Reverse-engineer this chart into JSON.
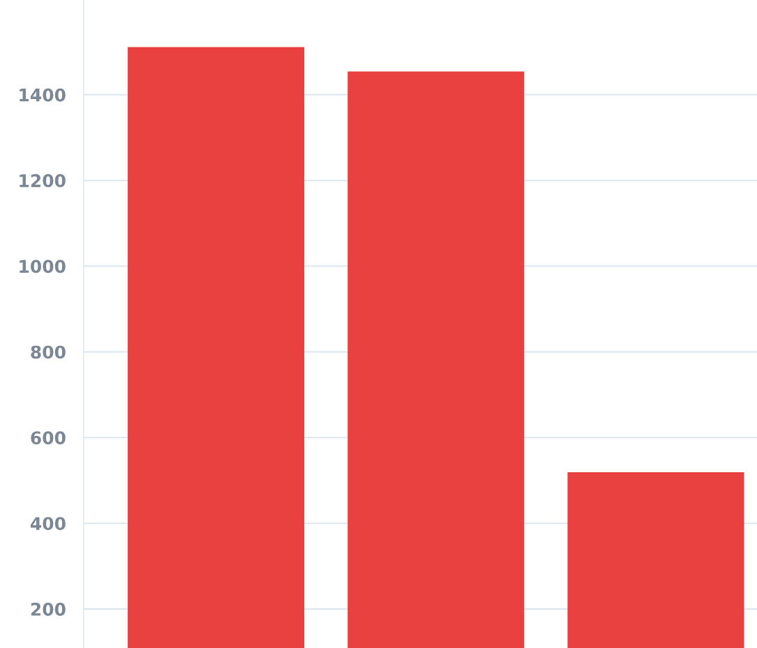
{
  "chart_data": {
    "type": "bar",
    "categories": [
      null,
      null,
      null
    ],
    "values": [
      1511,
      1454,
      519
    ],
    "color": "#e94040",
    "ylim": [
      109,
      1621
    ],
    "yticks": [
      200,
      400,
      600,
      800,
      1000,
      1200,
      1400
    ],
    "grid": "y",
    "tick_labels": "y"
  }
}
